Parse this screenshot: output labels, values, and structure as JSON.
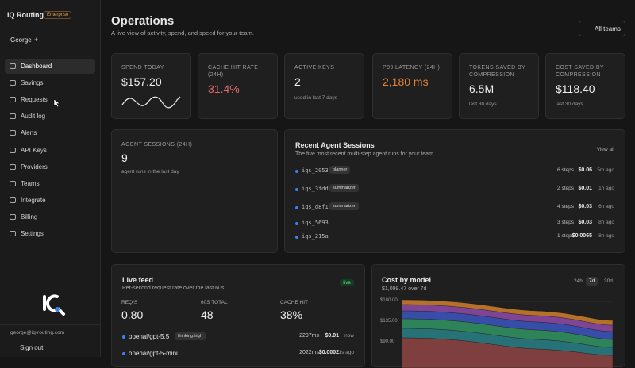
{
  "sidebar": {
    "brand": "IQ Routing",
    "plan": "Enterprise",
    "user": "George",
    "user_action": "+",
    "nav": [
      "Dashboard",
      "Savings",
      "Requests",
      "Audit log",
      "Alerts",
      "API Keys",
      "Providers",
      "Teams",
      "Integrate",
      "Billing",
      "Settings"
    ],
    "email": "george@iq-routing.com",
    "sign_out": "Sign out"
  },
  "header": {
    "title": "Operations",
    "subtitle": "A live view of activity, spend, and speed for your team.",
    "team_button": "All teams"
  },
  "stats": [
    {
      "label": "Spend today",
      "value": "$157.20"
    },
    {
      "label": "Cache hit rate (24h)",
      "value": "31.4%"
    },
    {
      "label": "Active keys",
      "value": "2",
      "note": "used in last 7 days"
    },
    {
      "label": "P99 latency (24h)",
      "value": "2,180 ms"
    },
    {
      "label": "Tokens saved by compression",
      "value": "6.5M",
      "note": "last 30 days"
    },
    {
      "label": "Cost saved by compression",
      "value": "$118.40",
      "note": "last 30 days"
    }
  ],
  "agent_sessions": {
    "label": "Agent sessions (24h)",
    "value": "9",
    "note": "agent runs in the last day"
  },
  "recent_sessions": {
    "title": "Recent Agent Sessions",
    "subtitle": "The five most recent multi-step agent runs for your team.",
    "link": "View all",
    "rows": [
      {
        "id": "iqs_2053",
        "tag": "planner",
        "steps": "6 steps",
        "cost": "$0.06",
        "time": "5m ago"
      },
      {
        "id": "iqs_3fdd",
        "tag": "summarizer",
        "steps": "2 steps",
        "cost": "$0.01",
        "time": "1h ago"
      },
      {
        "id": "iqs_d8f1",
        "tag": "summarizer",
        "steps": "4 steps",
        "cost": "$0.03",
        "time": "6h ago"
      },
      {
        "id": "iqs_5693",
        "steps": "3 steps",
        "cost": "$0.03",
        "time": "8h ago"
      },
      {
        "id": "iqs_215a",
        "steps": "1 steps",
        "cost": "$0.0065",
        "time": "8h ago"
      }
    ]
  },
  "live_feed": {
    "title": "Live feed",
    "subtitle": "Per-second request rate over the last 60s.",
    "badge": "live",
    "stats": [
      {
        "label": "REQ/S",
        "value": "0.80"
      },
      {
        "label": "60S TOTAL",
        "value": "48"
      },
      {
        "label": "CACHE HIT",
        "value": "38%"
      }
    ],
    "rows": [
      {
        "model": "openai/gpt-5.5",
        "tag": "thinking:high",
        "latency": "2297ms",
        "cost": "$0.01",
        "time": "now"
      },
      {
        "model": "openai/gpt-5-mini",
        "latency": "2022ms",
        "cost": "$0.0002",
        "time": "1s ago"
      }
    ]
  },
  "cost_by_model": {
    "title": "Cost by model",
    "subtitle": "$1,099.47 over 7d",
    "ranges": [
      "24h",
      "7d",
      "30d"
    ],
    "axis_labels": [
      "$180.00",
      "$135.00",
      "$90.00"
    ]
  }
}
